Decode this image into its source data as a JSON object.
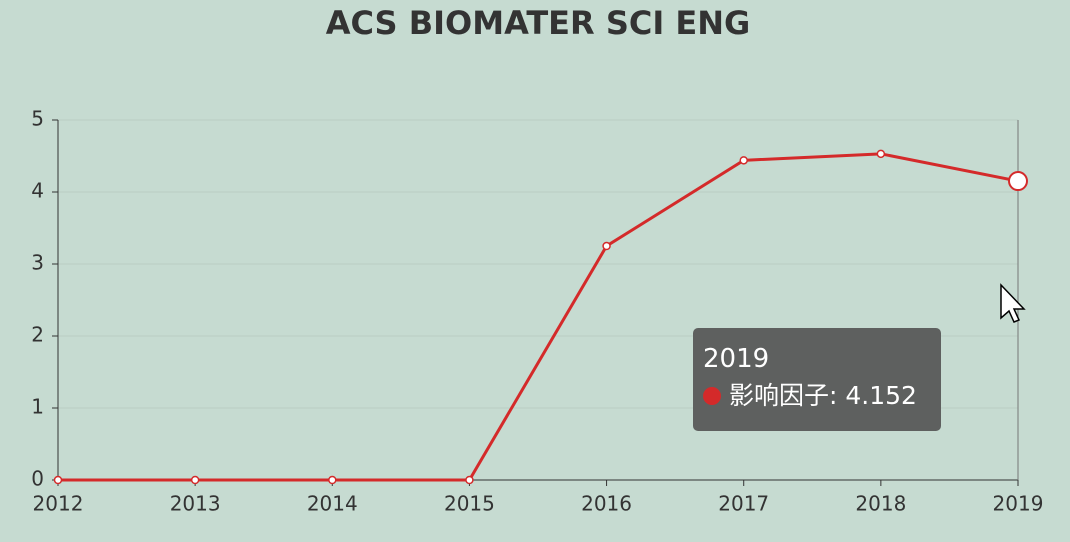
{
  "chart_data": {
    "type": "line",
    "title": "ACS BIOMATER SCI ENG",
    "categories": [
      "2012",
      "2013",
      "2014",
      "2015",
      "2016",
      "2017",
      "2018",
      "2019"
    ],
    "values": [
      0,
      0,
      0,
      0,
      3.25,
      4.44,
      4.53,
      4.152
    ],
    "color": "#d42a2a",
    "ylim": [
      0,
      5
    ],
    "yticks": [
      0,
      1,
      2,
      3,
      4,
      5
    ],
    "grid": true,
    "tooltip": {
      "title": "2019",
      "text": "影响因子: 4.152"
    }
  }
}
